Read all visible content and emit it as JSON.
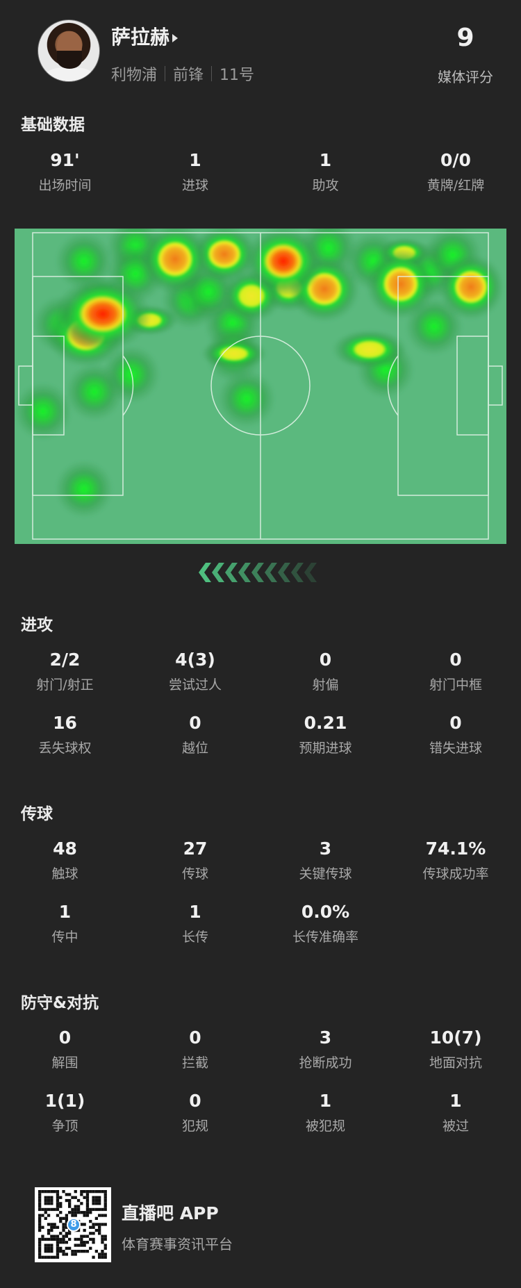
{
  "player": {
    "name": "萨拉赫",
    "team": "利物浦",
    "position": "前锋",
    "number": "11号",
    "rating": "9",
    "rating_label": "媒体评分"
  },
  "basic": {
    "title": "基础数据",
    "stats": [
      {
        "value": "91'",
        "label": "出场时间"
      },
      {
        "value": "1",
        "label": "进球"
      },
      {
        "value": "1",
        "label": "助攻"
      },
      {
        "value": "0/0",
        "label": "黄牌/红牌"
      }
    ]
  },
  "attack": {
    "title": "进攻",
    "stats": [
      {
        "value": "2/2",
        "label": "射门/射正"
      },
      {
        "value": "4(3)",
        "label": "尝试过人"
      },
      {
        "value": "0",
        "label": "射偏"
      },
      {
        "value": "0",
        "label": "射门中框"
      },
      {
        "value": "16",
        "label": "丢失球权"
      },
      {
        "value": "0",
        "label": "越位"
      },
      {
        "value": "0.21",
        "label": "预期进球"
      },
      {
        "value": "0",
        "label": "错失进球"
      }
    ]
  },
  "passing": {
    "title": "传球",
    "stats": [
      {
        "value": "48",
        "label": "触球"
      },
      {
        "value": "27",
        "label": "传球"
      },
      {
        "value": "3",
        "label": "关键传球"
      },
      {
        "value": "74.1%",
        "label": "传球成功率"
      },
      {
        "value": "1",
        "label": "传中"
      },
      {
        "value": "1",
        "label": "长传"
      },
      {
        "value": "0.0%",
        "label": "长传准确率"
      }
    ]
  },
  "defense": {
    "title": "防守&对抗",
    "stats": [
      {
        "value": "0",
        "label": "解围"
      },
      {
        "value": "0",
        "label": "拦截"
      },
      {
        "value": "3",
        "label": "抢断成功"
      },
      {
        "value": "10(7)",
        "label": "地面对抗"
      },
      {
        "value": "1(1)",
        "label": "争顶"
      },
      {
        "value": "0",
        "label": "犯规"
      },
      {
        "value": "1",
        "label": "被犯规"
      },
      {
        "value": "1",
        "label": "被过"
      }
    ]
  },
  "heatmap": {
    "attack_direction": "left",
    "pitch_color": "#5bb97e"
  },
  "footer": {
    "app_name": "直播吧 APP",
    "slogan": "体育赛事资讯平台",
    "qr_badge": "8"
  },
  "colors": {
    "background": "#242424",
    "accent": "#4fbf7f"
  }
}
